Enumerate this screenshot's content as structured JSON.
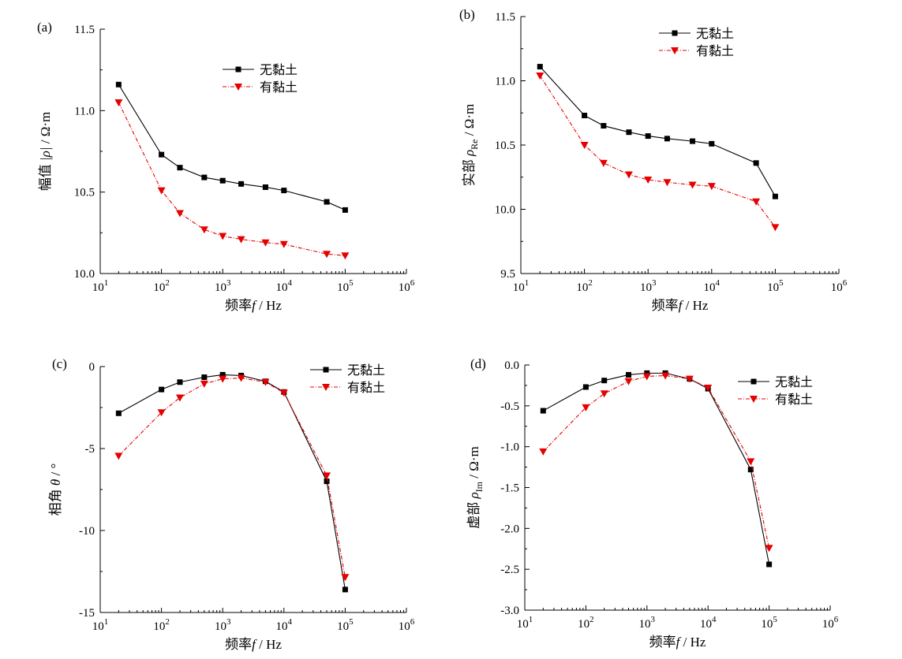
{
  "chart_data": [
    {
      "id": "a",
      "panel_label": "(a)",
      "type": "line",
      "xscale": "log",
      "xlim": [
        10,
        1000000
      ],
      "ylim": [
        10.0,
        11.5
      ],
      "yticks": [
        "10.0",
        "10.5",
        "11.0",
        "11.5"
      ],
      "xlabel": {
        "prefix": "频率",
        "var": "f",
        "unit": " / Hz"
      },
      "ylabel": {
        "prefix": "幅值 ",
        "var": "|ρ|",
        "sub": "",
        "unit": " / Ω·m"
      },
      "legend_position": "top-center",
      "x": [
        20,
        100,
        200,
        500,
        1000,
        2000,
        5000,
        10000,
        50000,
        100000
      ],
      "series": [
        {
          "name": "无黏土",
          "color": "#000000",
          "marker": "square",
          "dashed": false,
          "values": [
            11.16,
            10.73,
            10.65,
            10.59,
            10.57,
            10.55,
            10.53,
            10.51,
            10.44,
            10.39
          ]
        },
        {
          "name": "有黏土",
          "color": "#e60000",
          "marker": "triangle-down",
          "dashed": true,
          "values": [
            11.05,
            10.51,
            10.37,
            10.27,
            10.23,
            10.21,
            10.19,
            10.18,
            10.12,
            10.11
          ]
        }
      ]
    },
    {
      "id": "b",
      "panel_label": "(b)",
      "type": "line",
      "xscale": "log",
      "xlim": [
        10,
        1000000
      ],
      "ylim": [
        9.5,
        11.5
      ],
      "yticks": [
        "9.5",
        "10.0",
        "10.5",
        "11.0",
        "11.5"
      ],
      "xlabel": {
        "prefix": "频率",
        "var": "f",
        "unit": " / Hz"
      },
      "ylabel": {
        "prefix": "实部 ",
        "var": "ρ",
        "sub": "Re",
        "unit": " / Ω·m"
      },
      "legend_position": "top-right",
      "x": [
        20,
        100,
        200,
        500,
        1000,
        2000,
        5000,
        10000,
        50000,
        100000
      ],
      "series": [
        {
          "name": "无黏土",
          "color": "#000000",
          "marker": "square",
          "dashed": false,
          "values": [
            11.11,
            10.73,
            10.65,
            10.6,
            10.57,
            10.55,
            10.53,
            10.51,
            10.36,
            10.1
          ]
        },
        {
          "name": "有黏土",
          "color": "#e60000",
          "marker": "triangle-down",
          "dashed": true,
          "values": [
            11.04,
            10.5,
            10.36,
            10.27,
            10.23,
            10.21,
            10.19,
            10.18,
            10.06,
            9.86
          ]
        }
      ]
    },
    {
      "id": "c",
      "panel_label": "(c)",
      "type": "line",
      "xscale": "log",
      "xlim": [
        10,
        1000000
      ],
      "ylim": [
        -15,
        0
      ],
      "yticks": [
        "-15",
        "-10",
        "-5",
        "0"
      ],
      "xlabel": {
        "prefix": "频率",
        "var": "f",
        "unit": " / Hz"
      },
      "ylabel": {
        "prefix": "相角 ",
        "var": "θ",
        "sub": "",
        "unit": " / °"
      },
      "legend_position": "top-right",
      "x": [
        20,
        100,
        200,
        500,
        1000,
        2000,
        5000,
        10000,
        50000,
        100000
      ],
      "series": [
        {
          "name": "无黏土",
          "color": "#000000",
          "marker": "square",
          "dashed": false,
          "values": [
            -2.85,
            -1.4,
            -0.95,
            -0.65,
            -0.5,
            -0.55,
            -0.9,
            -1.55,
            -7.0,
            -13.6
          ]
        },
        {
          "name": "有黏土",
          "color": "#e60000",
          "marker": "triangle-down",
          "dashed": true,
          "values": [
            -5.45,
            -2.8,
            -1.9,
            -1.05,
            -0.75,
            -0.7,
            -0.95,
            -1.6,
            -6.65,
            -12.85
          ]
        }
      ]
    },
    {
      "id": "d",
      "panel_label": "(d)",
      "type": "line",
      "xscale": "log",
      "xlim": [
        10,
        1000000
      ],
      "ylim": [
        -3.0,
        0.0
      ],
      "yticks": [
        "-3.0",
        "-2.5",
        "-2.0",
        "-1.5",
        "-1.0",
        "-0.5",
        "0.0"
      ],
      "xlabel": {
        "prefix": "频率",
        "var": "f",
        "unit": " / Hz"
      },
      "ylabel": {
        "prefix": "虚部 ",
        "var": "ρ",
        "sub": "Im",
        "unit": " / Ω·m"
      },
      "legend_position": "top-right",
      "x": [
        20,
        100,
        200,
        500,
        1000,
        2000,
        5000,
        10000,
        50000,
        100000
      ],
      "series": [
        {
          "name": "无黏土",
          "color": "#000000",
          "marker": "square",
          "dashed": false,
          "values": [
            -0.56,
            -0.27,
            -0.19,
            -0.12,
            -0.1,
            -0.1,
            -0.17,
            -0.29,
            -1.28,
            -2.44
          ]
        },
        {
          "name": "有黏土",
          "color": "#e60000",
          "marker": "triangle-down",
          "dashed": true,
          "values": [
            -1.06,
            -0.52,
            -0.35,
            -0.2,
            -0.14,
            -0.13,
            -0.17,
            -0.28,
            -1.18,
            -2.24
          ]
        }
      ]
    }
  ]
}
